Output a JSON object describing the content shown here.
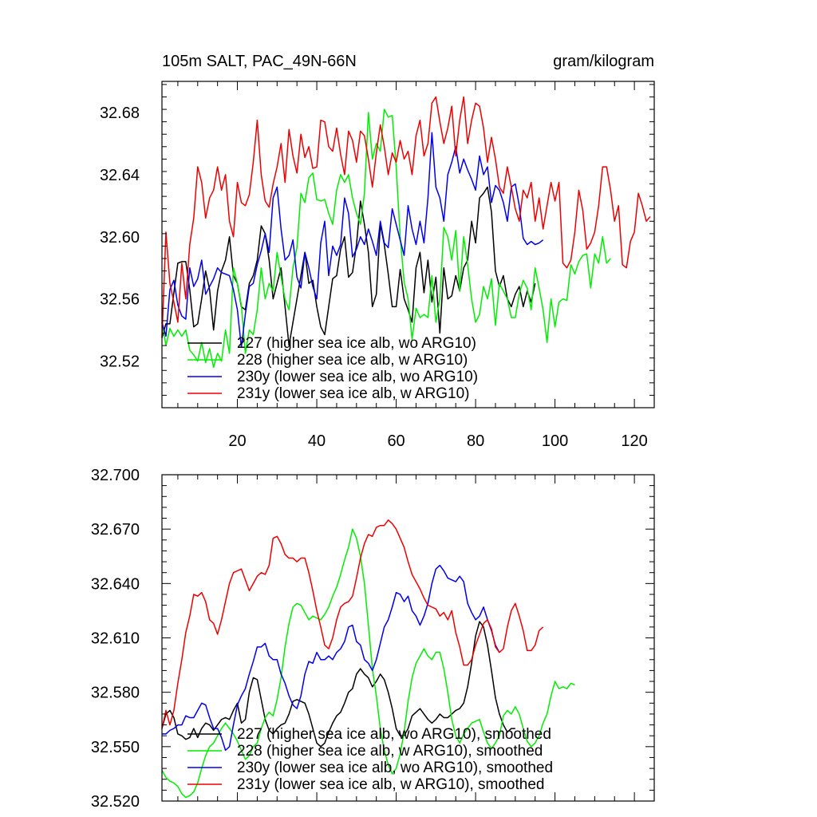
{
  "chart_data": [
    {
      "type": "line",
      "title_left": "105m SALT, PAC_49N-66N",
      "title_right": "gram/kilogram",
      "xlim": [
        1,
        125
      ],
      "ylim": [
        32.49,
        32.7
      ],
      "x_ticks": [
        20,
        40,
        60,
        80,
        100,
        120
      ],
      "y_ticks": [
        32.52,
        32.56,
        32.6,
        32.64,
        32.68
      ],
      "x_tick_labels": [
        "20",
        "40",
        "60",
        "80",
        "100",
        "120"
      ],
      "y_tick_labels": [
        "32.52",
        "32.56",
        "32.60",
        "32.64",
        "32.68"
      ],
      "series": [
        {
          "name": "227 (higher sea ice alb, wo ARG10)",
          "color": "#000000",
          "values": [
            32.535,
            32.544,
            32.544,
            32.564,
            32.583,
            32.584,
            32.584,
            32.566,
            32.542,
            32.544,
            32.56,
            32.578,
            32.566,
            32.54,
            32.565,
            32.578,
            32.585,
            32.6,
            32.575,
            32.57,
            32.555,
            32.553,
            32.57,
            32.575,
            32.585,
            32.607,
            32.602,
            32.585,
            32.56,
            32.57,
            32.58,
            32.555,
            32.53,
            32.545,
            32.56,
            32.575,
            32.59,
            32.57,
            32.572,
            32.555,
            32.542,
            32.537,
            32.555,
            32.573,
            32.575,
            32.592,
            32.6,
            32.574,
            32.577,
            32.595,
            32.623,
            32.608,
            32.59,
            32.555,
            32.563,
            32.608,
            32.595,
            32.576,
            32.555,
            32.555,
            32.579,
            32.56,
            32.553,
            32.545,
            32.58,
            32.59,
            32.564,
            32.585,
            32.558,
            32.574,
            32.538,
            32.58,
            32.56,
            32.562,
            32.575,
            32.565,
            32.58,
            32.585,
            32.61,
            32.596,
            32.625,
            32.628,
            32.632,
            32.616,
            32.578,
            32.568,
            32.575,
            32.56,
            32.555,
            32.563,
            32.568,
            32.555,
            32.565,
            32.558,
            32.57
          ]
        },
        {
          "name": "228 (higher sea ice alb, w ARG10)",
          "color": "#00ee00",
          "values": [
            32.545,
            32.53,
            32.541,
            32.536,
            32.54,
            32.536,
            32.54,
            32.527,
            32.524,
            32.52,
            32.532,
            32.519,
            32.528,
            32.516,
            32.525,
            32.52,
            32.54,
            32.525,
            32.58,
            32.57,
            32.556,
            32.525,
            32.54,
            32.537,
            32.553,
            32.58,
            32.56,
            32.57,
            32.565,
            32.59,
            32.574,
            32.56,
            32.553,
            32.58,
            32.593,
            32.628,
            32.622,
            32.638,
            32.641,
            32.624,
            32.623,
            32.624,
            32.615,
            32.608,
            32.63,
            32.64,
            32.635,
            32.64,
            32.625,
            32.615,
            32.608,
            32.628,
            32.68,
            32.65,
            32.66,
            32.655,
            32.682,
            32.677,
            32.678,
            32.645,
            32.6,
            32.571,
            32.56,
            32.534,
            32.554,
            32.548,
            32.55,
            32.548,
            32.575,
            32.545,
            32.56,
            32.606,
            32.6,
            32.585,
            32.604,
            32.565,
            32.6,
            32.582,
            32.56,
            32.545,
            32.55,
            32.568,
            32.56,
            32.573,
            32.543,
            32.57,
            32.565,
            32.56,
            32.548,
            32.548,
            32.563,
            32.572,
            32.567,
            32.553,
            32.58,
            32.567,
            32.553,
            32.532,
            32.56,
            32.542,
            32.558,
            32.56,
            32.559,
            32.582,
            32.576,
            32.584,
            32.588,
            32.589,
            32.567,
            32.589,
            32.583,
            32.6,
            32.583,
            32.586
          ]
        },
        {
          "name": "230y (lower sea ice alb, wo ARG10)",
          "color": "#0000ee",
          "values": [
            32.545,
            32.536,
            32.566,
            32.572,
            32.556,
            32.549,
            32.547,
            32.58,
            32.568,
            32.573,
            32.585,
            32.563,
            32.568,
            32.573,
            32.58,
            32.577,
            32.576,
            32.575,
            32.566,
            32.553,
            32.529,
            32.55,
            32.568,
            32.57,
            32.582,
            32.591,
            32.602,
            32.59,
            32.625,
            32.632,
            32.605,
            32.585,
            32.588,
            32.598,
            32.574,
            32.567,
            32.59,
            32.58,
            32.568,
            32.56,
            32.596,
            32.61,
            32.575,
            32.594,
            32.588,
            32.595,
            32.625,
            32.615,
            32.587,
            32.592,
            32.6,
            32.595,
            32.605,
            32.597,
            32.588,
            32.61,
            32.596,
            32.593,
            32.618,
            32.608,
            32.598,
            32.588,
            32.62,
            32.605,
            32.595,
            32.61,
            32.596,
            32.625,
            32.667,
            32.632,
            32.625,
            32.61,
            32.64,
            32.648,
            32.658,
            32.641,
            32.65,
            32.643,
            32.637,
            32.63,
            32.652,
            32.64,
            32.645,
            32.622,
            32.633,
            32.63,
            32.622,
            32.61,
            32.632,
            32.634,
            32.62,
            32.599,
            32.595,
            32.597,
            32.595,
            32.596,
            32.598
          ]
        },
        {
          "name": "231y (lower sea ice alb, w ARG10)",
          "color": "#ee0000",
          "values": [
            32.535,
            32.603,
            32.57,
            32.558,
            32.545,
            32.583,
            32.56,
            32.595,
            32.612,
            32.645,
            32.635,
            32.612,
            32.625,
            32.63,
            32.645,
            32.63,
            32.64,
            32.61,
            32.6,
            32.635,
            32.622,
            32.62,
            32.627,
            32.648,
            32.675,
            32.64,
            32.623,
            32.619,
            32.634,
            32.645,
            32.66,
            32.635,
            32.669,
            32.652,
            32.641,
            32.666,
            32.651,
            32.658,
            32.644,
            32.645,
            32.675,
            32.674,
            32.658,
            32.655,
            32.67,
            32.653,
            32.64,
            32.668,
            32.662,
            32.648,
            32.668,
            32.665,
            32.65,
            32.632,
            32.654,
            32.672,
            32.658,
            32.64,
            32.654,
            32.648,
            32.662,
            32.65,
            32.655,
            32.64,
            32.665,
            32.675,
            32.652,
            32.66,
            32.686,
            32.69,
            32.674,
            32.66,
            32.67,
            32.684,
            32.652,
            32.675,
            32.69,
            32.66,
            32.675,
            32.686,
            32.684,
            32.67,
            32.648,
            32.664,
            32.65,
            32.632,
            32.628,
            32.645,
            32.632,
            32.618,
            32.61,
            32.63,
            32.625,
            32.635,
            32.61,
            32.625,
            32.605,
            32.62,
            32.635,
            32.623,
            32.635,
            32.583,
            32.58,
            32.585,
            32.603,
            32.63,
            32.617,
            32.592,
            32.596,
            32.603,
            32.62,
            32.645,
            32.645,
            32.63,
            32.61,
            32.62,
            32.582,
            32.58,
            32.597,
            32.603,
            32.628,
            32.62,
            32.61,
            32.613
          ]
        }
      ]
    },
    {
      "type": "line",
      "xlim": [
        1,
        125
      ],
      "ylim": [
        32.52,
        32.7
      ],
      "x_ticks": [
        20,
        40,
        60,
        80,
        100,
        120
      ],
      "y_ticks": [
        32.52,
        32.55,
        32.58,
        32.61,
        32.64,
        32.67,
        32.7
      ],
      "y_tick_labels": [
        "32.520",
        "32.550",
        "32.580",
        "32.610",
        "32.640",
        "32.670",
        "32.700"
      ],
      "series": [
        {
          "name": "227 (higher sea ice alb, wo ARG10), smoothed",
          "color": "#000000",
          "values": [
            32.56,
            32.568,
            32.57,
            32.566,
            32.557,
            32.556,
            32.554,
            32.555,
            32.56,
            32.555,
            32.56,
            32.563,
            32.562,
            32.559,
            32.562,
            32.565,
            32.566,
            32.565,
            32.57,
            32.574,
            32.563,
            32.565,
            32.58,
            32.588,
            32.587,
            32.576,
            32.565,
            32.559,
            32.557,
            32.56,
            32.562,
            32.563,
            32.568,
            32.575,
            32.576,
            32.575,
            32.574,
            32.568,
            32.56,
            32.552,
            32.55,
            32.552,
            32.558,
            32.563,
            32.567,
            32.569,
            32.574,
            32.58,
            32.582,
            32.59,
            32.593,
            32.59,
            32.588,
            32.583,
            32.586,
            32.59,
            32.587,
            32.58,
            32.571,
            32.56,
            32.556,
            32.556,
            32.56,
            32.567,
            32.569,
            32.571,
            32.568,
            32.565,
            32.563,
            32.565,
            32.568,
            32.566,
            32.566,
            32.568,
            32.57,
            32.571,
            32.574,
            32.583,
            32.596,
            32.611,
            32.619,
            32.616,
            32.606,
            32.592,
            32.577,
            32.568,
            32.562,
            32.558,
            32.56,
            32.56
          ]
        },
        {
          "name": "228 (higher sea ice alb, w ARG10), smoothed",
          "color": "#00ee00",
          "values": [
            32.537,
            32.533,
            32.531,
            32.53,
            32.528,
            32.524,
            32.522,
            32.523,
            32.525,
            32.53,
            32.538,
            32.545,
            32.55,
            32.552,
            32.556,
            32.56,
            32.563,
            32.56,
            32.557,
            32.553,
            32.548,
            32.543,
            32.545,
            32.55,
            32.552,
            32.56,
            32.566,
            32.569,
            32.567,
            32.576,
            32.588,
            32.605,
            32.618,
            32.627,
            32.629,
            32.628,
            32.624,
            32.62,
            32.622,
            32.621,
            32.62,
            32.623,
            32.627,
            32.633,
            32.638,
            32.645,
            32.653,
            32.66,
            32.67,
            32.665,
            32.655,
            32.64,
            32.617,
            32.593,
            32.578,
            32.56,
            32.548,
            32.54,
            32.535,
            32.538,
            32.546,
            32.558,
            32.575,
            32.588,
            32.596,
            32.6,
            32.604,
            32.6,
            32.598,
            32.602,
            32.602,
            32.593,
            32.58,
            32.565,
            32.556,
            32.552,
            32.557,
            32.56,
            32.563,
            32.564,
            32.565,
            32.558,
            32.552,
            32.549,
            32.552,
            32.556,
            32.567,
            32.57,
            32.568,
            32.572,
            32.568,
            32.56,
            32.553,
            32.55,
            32.552,
            32.556,
            32.563,
            32.568,
            32.578,
            32.586,
            32.582,
            32.583,
            32.582,
            32.585,
            32.584
          ]
        },
        {
          "name": "230y (lower sea ice alb, wo ARG10), smoothed",
          "color": "#0000ee",
          "values": [
            32.557,
            32.557,
            32.559,
            32.56,
            32.562,
            32.562,
            32.567,
            32.566,
            32.566,
            32.57,
            32.574,
            32.573,
            32.566,
            32.56,
            32.56,
            32.555,
            32.548,
            32.55,
            32.562,
            32.573,
            32.578,
            32.582,
            32.59,
            32.597,
            32.605,
            32.605,
            32.607,
            32.6,
            32.598,
            32.598,
            32.59,
            32.585,
            32.578,
            32.573,
            32.571,
            32.578,
            32.59,
            32.597,
            32.596,
            32.602,
            32.598,
            32.598,
            32.6,
            32.598,
            32.602,
            32.604,
            32.608,
            32.616,
            32.617,
            32.608,
            32.606,
            32.598,
            32.596,
            32.592,
            32.598,
            32.607,
            32.616,
            32.62,
            32.627,
            32.635,
            32.634,
            32.63,
            32.633,
            32.625,
            32.622,
            32.617,
            32.622,
            32.629,
            32.64,
            32.648,
            32.65,
            32.647,
            32.643,
            32.642,
            32.641,
            32.644,
            32.641,
            32.629,
            32.624,
            32.62,
            32.622,
            32.627,
            32.62,
            32.614,
            32.606,
            32.602
          ]
        },
        {
          "name": "231y (lower sea ice alb, w ARG10), smoothed",
          "color": "#ee0000",
          "values": [
            32.56,
            32.57,
            32.562,
            32.57,
            32.585,
            32.598,
            32.613,
            32.622,
            32.634,
            32.633,
            32.635,
            32.63,
            32.62,
            32.618,
            32.612,
            32.62,
            32.63,
            32.64,
            32.646,
            32.647,
            32.648,
            32.642,
            32.636,
            32.64,
            32.644,
            32.646,
            32.645,
            32.65,
            32.665,
            32.666,
            32.662,
            32.656,
            32.654,
            32.654,
            32.652,
            32.654,
            32.654,
            32.646,
            32.636,
            32.625,
            32.616,
            32.606,
            32.604,
            32.61,
            32.62,
            32.627,
            32.629,
            32.63,
            32.633,
            32.643,
            32.654,
            32.662,
            32.667,
            32.666,
            32.671,
            32.672,
            32.672,
            32.675,
            32.673,
            32.67,
            32.665,
            32.66,
            32.652,
            32.645,
            32.641,
            32.637,
            32.632,
            32.628,
            32.627,
            32.626,
            32.622,
            32.624,
            32.62,
            32.625,
            32.613,
            32.605,
            32.595,
            32.595,
            32.598,
            32.606,
            32.612,
            32.618,
            32.62,
            32.615,
            32.605,
            32.602,
            32.604,
            32.616,
            32.625,
            32.629,
            32.622,
            32.614,
            32.603,
            32.603,
            32.606,
            32.614,
            32.616
          ]
        }
      ]
    }
  ]
}
